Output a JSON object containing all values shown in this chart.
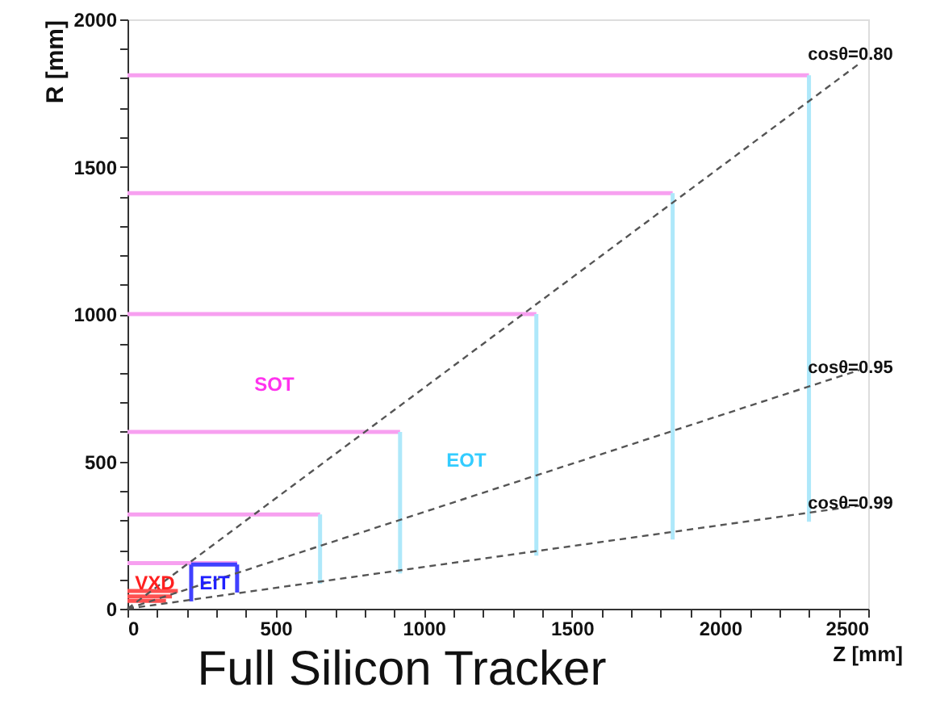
{
  "chart_data": {
    "type": "line",
    "xlabel": "Z [mm]",
    "ylabel": "R [mm]",
    "xlim": [
      0,
      2500
    ],
    "ylim": [
      0,
      2000
    ],
    "xticks": [
      0,
      {
        "value": 100,
        "label": null
      },
      {
        "value": 200,
        "label": null
      },
      {
        "value": 300,
        "label": null
      },
      {
        "value": 400,
        "label": null
      },
      500,
      {
        "value": 600,
        "label": null
      },
      {
        "value": 700,
        "label": null
      },
      {
        "value": 800,
        "label": null
      },
      {
        "value": 900,
        "label": null
      },
      1000,
      {
        "value": 1100,
        "label": null
      },
      {
        "value": 1200,
        "label": null
      },
      {
        "value": 1300,
        "label": null
      },
      {
        "value": 1400,
        "label": null
      },
      1500,
      {
        "value": 1600,
        "label": null
      },
      {
        "value": 1700,
        "label": null
      },
      {
        "value": 1800,
        "label": null
      },
      {
        "value": 1900,
        "label": null
      },
      2000,
      {
        "value": 2100,
        "label": null
      },
      {
        "value": 2200,
        "label": null
      },
      {
        "value": 2300,
        "label": null
      },
      {
        "value": 2400,
        "label": null
      },
      2500
    ],
    "yticks": [
      0,
      {
        "value": 100,
        "label": null
      },
      {
        "value": 200,
        "label": null
      },
      {
        "value": 300,
        "label": null
      },
      {
        "value": 400,
        "label": null
      },
      500,
      {
        "value": 600,
        "label": null
      },
      {
        "value": 700,
        "label": null
      },
      {
        "value": 800,
        "label": null
      },
      {
        "value": 900,
        "label": null
      },
      1000,
      {
        "value": 1100,
        "label": null
      },
      {
        "value": 1200,
        "label": null
      },
      {
        "value": 1300,
        "label": null
      },
      {
        "value": 1400,
        "label": null
      },
      1500,
      {
        "value": 1600,
        "label": null
      },
      {
        "value": 1700,
        "label": null
      },
      {
        "value": 1800,
        "label": null
      },
      {
        "value": 1900,
        "label": null
      },
      2000
    ],
    "grid": false,
    "line_style": "solid",
    "marker": "none",
    "series": [
      {
        "color": "#f7a0f0",
        "x": [
          0,
          2300
        ],
        "values": [
          1810,
          1810
        ]
      },
      {
        "color": "#f7a0f0",
        "x": [
          0,
          1840
        ],
        "values": [
          1410,
          1410
        ]
      },
      {
        "color": "#f7a0f0",
        "x": [
          0,
          1380
        ],
        "values": [
          1000,
          1000
        ]
      },
      {
        "color": "#f7a0f0",
        "x": [
          0,
          920
        ],
        "values": [
          600,
          600
        ]
      },
      {
        "color": "#f7a0f0",
        "x": [
          0,
          650
        ],
        "values": [
          320,
          320
        ]
      },
      {
        "color": "#f7a0f0",
        "x": [
          0,
          370
        ],
        "values": [
          155,
          155
        ]
      },
      {
        "color": "#aee8fa",
        "x": [
          2300,
          2300
        ],
        "values": [
          295,
          1810
        ]
      },
      {
        "color": "#aee8fa",
        "x": [
          1840,
          1840
        ],
        "values": [
          235,
          1410
        ]
      },
      {
        "color": "#aee8fa",
        "x": [
          1380,
          1380
        ],
        "values": [
          180,
          1000
        ]
      },
      {
        "color": "#aee8fa",
        "x": [
          920,
          920
        ],
        "values": [
          120,
          600
        ]
      },
      {
        "color": "#aee8fa",
        "x": [
          650,
          650
        ],
        "values": [
          85,
          320
        ]
      },
      {
        "color": "#ff5050",
        "x": [
          0,
          170
        ],
        "values": [
          60,
          60
        ]
      },
      {
        "color": "#ff5050",
        "x": [
          0,
          150
        ],
        "values": [
          42,
          42
        ]
      },
      {
        "color": "#ff5050",
        "x": [
          0,
          130
        ],
        "values": [
          27,
          27
        ]
      },
      {
        "color": "#4040ff",
        "x": [
          215,
          215
        ],
        "values": [
          25,
          150
        ]
      },
      {
        "color": "#4040ff",
        "x": [
          370,
          370
        ],
        "values": [
          55,
          150
        ]
      },
      {
        "color": "#4040ff",
        "x": [
          215,
          370
        ],
        "values": [
          150,
          150
        ]
      },
      {
        "color": "#555555",
        "line_style": "dashed",
        "x": [
          0,
          2470
        ],
        "values": [
          0,
          1850
        ]
      },
      {
        "color": "#555555",
        "line_style": "dashed",
        "x": [
          0,
          2470
        ],
        "values": [
          0,
          810
        ]
      },
      {
        "color": "#555555",
        "line_style": "dashed",
        "x": [
          0,
          2470
        ],
        "values": [
          0,
          350
        ]
      }
    ],
    "annotations": [
      "cosθ=0.80",
      "cosθ=0.95",
      "cosθ=0.99",
      "SOT",
      "EOT",
      "VXD",
      "EIT",
      "Full Silicon Tracker"
    ]
  }
}
